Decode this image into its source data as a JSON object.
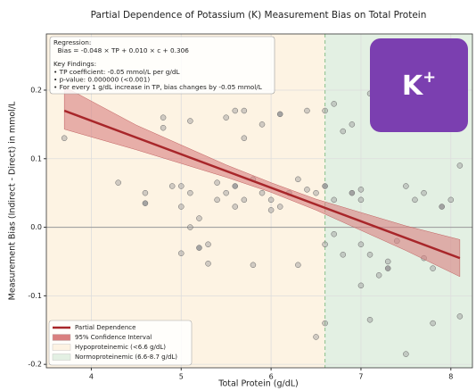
{
  "chart_data": {
    "type": "scatter",
    "title": "Partial Dependence of Potassium (K) Measurement Bias on Total Protein",
    "xlabel": "Total Protein (g/dL)",
    "ylabel": "Measurement Bias (Indirect - Direct) in mmol/L",
    "xlim": [
      3.5,
      8.24
    ],
    "ylim": [
      -0.205,
      0.282
    ],
    "xticks": [
      4,
      5,
      6,
      7,
      8
    ],
    "yticks": [
      -0.2,
      -0.1,
      {
        "value": 0,
        "label": "0.0"
      },
      0.1,
      0.2
    ],
    "grid": true,
    "reference_line_y": 0,
    "divider_x": 6.6,
    "point_color": "#9a9a9a",
    "x": [
      3.7,
      4.3,
      4.6,
      4.6,
      4.8,
      4.8,
      4.9,
      5.0,
      5.0,
      5.1,
      5.1,
      5.2,
      5.2,
      5.3,
      5.3,
      5.1,
      5.4,
      5.4,
      5.5,
      5.5,
      5.6,
      5.6,
      5.7,
      5.7,
      5.7,
      5.8,
      5.8,
      5.9,
      5.9,
      6.0,
      6.1,
      6.1,
      6.2,
      6.3,
      6.3,
      6.4,
      6.4,
      6.5,
      6.6,
      6.6,
      6.6,
      6.6,
      6.5,
      6.7,
      6.7,
      6.7,
      6.8,
      6.8,
      6.9,
      6.9,
      7.0,
      7.0,
      7.0,
      7.1,
      7.1,
      7.1,
      7.2,
      7.3,
      7.3,
      7.4,
      7.5,
      7.5,
      7.6,
      7.7,
      7.7,
      7.8,
      7.9,
      8.0,
      8.1,
      8.1,
      7.8,
      5.0,
      6.0,
      5.6,
      7.0
    ],
    "y": [
      0.13,
      0.065,
      0.05,
      0.035,
      0.16,
      0.145,
      0.06,
      0.06,
      0.03,
      0.155,
      0.05,
      0.013,
      -0.03,
      -0.025,
      -0.053,
      0.0,
      0.065,
      0.04,
      0.16,
      0.05,
      0.17,
      0.06,
      0.17,
      0.04,
      0.13,
      0.07,
      -0.055,
      0.15,
      0.05,
      0.04,
      0.165,
      0.03,
      0.05,
      0.07,
      -0.055,
      0.17,
      0.055,
      0.05,
      0.17,
      0.06,
      -0.14,
      -0.025,
      -0.16,
      0.18,
      0.04,
      -0.01,
      -0.04,
      0.14,
      0.05,
      0.15,
      0.055,
      0.04,
      -0.025,
      -0.04,
      0.195,
      -0.135,
      -0.07,
      -0.06,
      -0.05,
      -0.02,
      -0.185,
      0.06,
      0.04,
      -0.045,
      0.05,
      -0.06,
      0.03,
      0.04,
      -0.13,
      0.09,
      -0.14,
      -0.038,
      0.025,
      0.03,
      -0.085
    ],
    "regression": {
      "name": "Partial Dependence",
      "color": "#a8262a",
      "x": [
        3.7,
        8.1
      ],
      "y": [
        0.17,
        -0.045
      ]
    },
    "confidence_band": {
      "name": "95% Confidence Interval",
      "color": "#d98080",
      "x": [
        3.7,
        4.5,
        5.5,
        6.0,
        6.5,
        7.5,
        8.1
      ],
      "upper": [
        0.205,
        0.149,
        0.091,
        0.065,
        0.041,
        0.002,
        -0.018
      ],
      "lower": [
        0.143,
        0.113,
        0.073,
        0.051,
        0.025,
        -0.034,
        -0.072
      ]
    },
    "regions": [
      {
        "name": "Hypoproteinemic (<6.6 g/dL)",
        "color": "#fdf3e3",
        "xrange": [
          3.5,
          6.6
        ]
      },
      {
        "name": "Normoproteinemic (6.6-8.7 g/dL)",
        "color": "#e3f0e3",
        "xrange": [
          6.6,
          8.24
        ]
      }
    ],
    "annotation": {
      "title": "Regression:",
      "equation": "  Bias = -0.048 × TP + 0.010 × c + 0.306",
      "findings_title": "Key Findings:",
      "findings": [
        "• TP coefficient: -0.05 mmol/L per g/dL",
        "• p-value: 0.000000 (<0.001)",
        "• For every 1 g/dL increase in TP, bias changes by -0.05 mmol/L"
      ]
    },
    "badge": {
      "text": "K",
      "sup": "+",
      "color": "#7b3fb0"
    }
  }
}
